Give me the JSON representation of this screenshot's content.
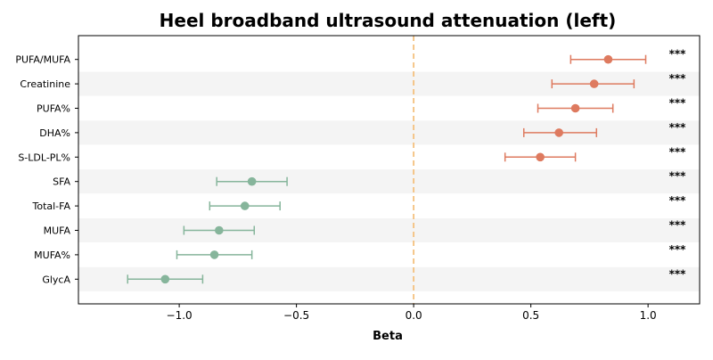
{
  "chart_data": {
    "type": "forest",
    "title": "Heel broadband ultrasound attenuation (left)",
    "xlabel": "Beta",
    "ylabel": "",
    "xlim": [
      -1.43,
      1.22
    ],
    "xticks": [
      -1.0,
      -0.5,
      0.0,
      0.5,
      1.0
    ],
    "xtick_labels": [
      "−1.0",
      "−0.5",
      "0.0",
      "0.5",
      "1.0"
    ],
    "reference_line": 0.0,
    "grid": false,
    "colors": {
      "positive": "#de7a5f",
      "negative": "#86b59b",
      "reference": "#f4c07e",
      "band": "#f4f4f4"
    },
    "rows": [
      {
        "label": "PUFA/MUFA",
        "beta": 0.83,
        "ci_low": 0.67,
        "ci_high": 0.99,
        "sig": "***"
      },
      {
        "label": "Creatinine",
        "beta": 0.77,
        "ci_low": 0.59,
        "ci_high": 0.94,
        "sig": "***"
      },
      {
        "label": "PUFA%",
        "beta": 0.69,
        "ci_low": 0.53,
        "ci_high": 0.85,
        "sig": "***"
      },
      {
        "label": "DHA%",
        "beta": 0.62,
        "ci_low": 0.47,
        "ci_high": 0.78,
        "sig": "***"
      },
      {
        "label": "S-LDL-PL%",
        "beta": 0.54,
        "ci_low": 0.39,
        "ci_high": 0.69,
        "sig": "***"
      },
      {
        "label": "SFA",
        "beta": -0.69,
        "ci_low": -0.84,
        "ci_high": -0.54,
        "sig": "***"
      },
      {
        "label": "Total-FA",
        "beta": -0.72,
        "ci_low": -0.87,
        "ci_high": -0.57,
        "sig": "***"
      },
      {
        "label": "MUFA",
        "beta": -0.83,
        "ci_low": -0.98,
        "ci_high": -0.68,
        "sig": "***"
      },
      {
        "label": "MUFA%",
        "beta": -0.85,
        "ci_low": -1.01,
        "ci_high": -0.69,
        "sig": "***"
      },
      {
        "label": "GlycA",
        "beta": -1.06,
        "ci_low": -1.22,
        "ci_high": -0.9,
        "sig": "***"
      }
    ]
  }
}
